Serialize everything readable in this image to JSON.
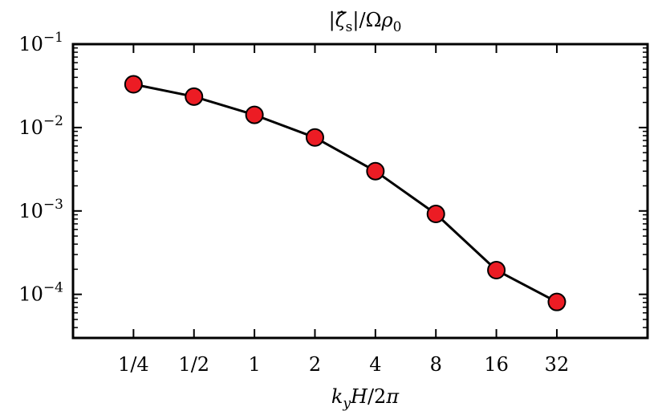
{
  "chart_data": {
    "type": "line",
    "title": "|ζ̂s|/Ωρ0",
    "xlabel": "kyH/2π",
    "ylabel": "",
    "xscale": "log2",
    "yscale": "log10",
    "categories": [
      "1/4",
      "1/2",
      "1",
      "2",
      "4",
      "8",
      "16",
      "32"
    ],
    "x": [
      0.25,
      0.5,
      1,
      2,
      4,
      8,
      16,
      32
    ],
    "xlim": [
      0.125,
      90.5
    ],
    "ylim": [
      3e-05,
      0.1
    ],
    "series": [
      {
        "values": [
          0.033,
          0.0235,
          0.0142,
          0.0076,
          0.003,
          0.00092,
          0.000195,
          8.1e-05
        ],
        "line_color": "#000000",
        "marker_color": "#ec1c24",
        "marker_edge_color": "#000000"
      }
    ],
    "y_ticks": [
      {
        "value": 0.1,
        "base": "10",
        "exp": "−1"
      },
      {
        "value": 0.01,
        "base": "10",
        "exp": "−2"
      },
      {
        "value": 0.001,
        "base": "10",
        "exp": "−3"
      },
      {
        "value": 0.0001,
        "base": "10",
        "exp": "−4"
      }
    ],
    "grid": false,
    "legend": "none"
  }
}
